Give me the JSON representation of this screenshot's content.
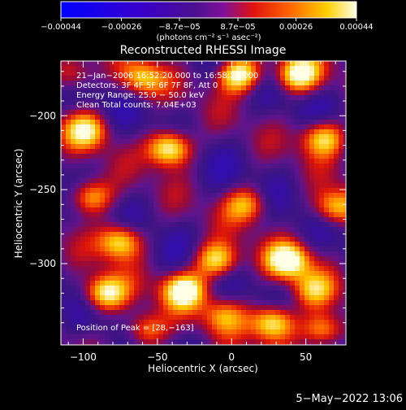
{
  "chart_data": {
    "type": "heatmap",
    "title": "Reconstructed RHESSI Image",
    "xlabel": "Heliocentric X (arcsec)",
    "ylabel": "Heliocentric Y (arcsec)",
    "xlim": [
      -115,
      77
    ],
    "ylim": [
      -355,
      -163
    ],
    "x_ticks": [
      -100,
      -50,
      0,
      50
    ],
    "x_tick_labels": [
      "−100",
      "−50",
      "0",
      "50"
    ],
    "y_ticks": [
      -200,
      -250,
      -300
    ],
    "y_tick_labels": [
      "−200",
      "−250",
      "−300"
    ],
    "colorbar": {
      "min": -0.00044,
      "max": 0.00044,
      "ticks": [
        -0.00044,
        -0.00026,
        -8.7e-05,
        8.7e-05,
        0.00026,
        0.00044
      ],
      "tick_labels": [
        "−0.00044",
        "−0.00026",
        "−8.7e−05",
        "8.7e−05",
        "0.00026",
        "0.00044"
      ],
      "units_label": "(photons cm⁻² s⁻¹ asec⁻²)"
    },
    "annotations": [
      "21−Jan−2006 16:52:20.000 to 16:58:20.000",
      "Detectors: 3F 4F 5F 6F 7F 8F, Att 0",
      "Energy Range: 25.0 − 50.0 keV",
      "Clean    Total counts: 7.04E+03"
    ],
    "peak_label": "Position of Peak = [28,−163]",
    "blobs": [
      {
        "x": -42,
        "y": -222,
        "v": 1.0
      },
      {
        "x": 5,
        "y": -172,
        "v": 0.95
      },
      {
        "x": 45,
        "y": -172,
        "v": 0.9
      },
      {
        "x": 62,
        "y": -215,
        "v": 0.75
      },
      {
        "x": -98,
        "y": -210,
        "v": 0.7
      },
      {
        "x": 38,
        "y": -298,
        "v": 0.9
      },
      {
        "x": -10,
        "y": -298,
        "v": 0.8
      },
      {
        "x": -75,
        "y": -285,
        "v": 0.8
      },
      {
        "x": 70,
        "y": -262,
        "v": 0.7
      },
      {
        "x": -95,
        "y": -255,
        "v": 0.7
      },
      {
        "x": 10,
        "y": -260,
        "v": 0.6
      },
      {
        "x": -32,
        "y": -318,
        "v": 0.9
      },
      {
        "x": -85,
        "y": -320,
        "v": 0.85
      },
      {
        "x": 28,
        "y": -340,
        "v": 0.9
      },
      {
        "x": 62,
        "y": -345,
        "v": 0.7
      },
      {
        "x": -60,
        "y": -175,
        "v": 0.6
      },
      {
        "x": -108,
        "y": -172,
        "v": 0.5
      },
      {
        "x": 55,
        "y": -318,
        "v": 0.55
      },
      {
        "x": -58,
        "y": -345,
        "v": 0.6
      },
      {
        "x": -5,
        "y": -335,
        "v": 0.5
      }
    ]
  },
  "timestamp": "5−May−2022 13:06"
}
